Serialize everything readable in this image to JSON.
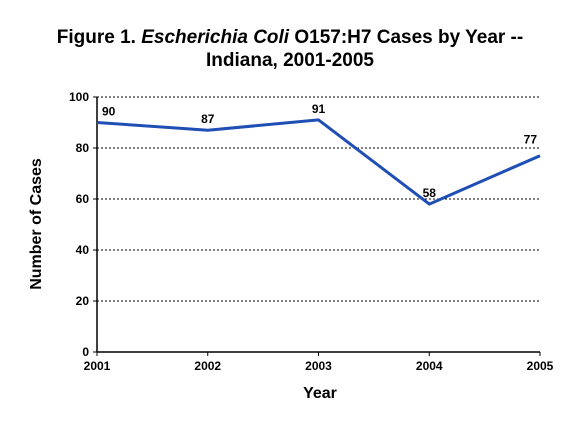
{
  "chart_data": {
    "type": "line",
    "title_line1_prefix": "Figure 1.  ",
    "title_line1_italic": "Escherichia Coli",
    "title_line1_suffix": " O157:H7 Cases by Year --",
    "title_line2": "Indiana, 2001-2005",
    "xlabel": "Year",
    "ylabel": "Number of Cases",
    "x": [
      "2001",
      "2002",
      "2003",
      "2004",
      "2005"
    ],
    "y": [
      90,
      87,
      91,
      58,
      77
    ],
    "data_labels": [
      "90",
      "87",
      "91",
      "58",
      "77"
    ],
    "ylim": [
      0,
      100
    ],
    "yticks": [
      0,
      20,
      40,
      60,
      80,
      100
    ],
    "grid": "horizontal dashed",
    "series_color": "#1f4fb4"
  }
}
